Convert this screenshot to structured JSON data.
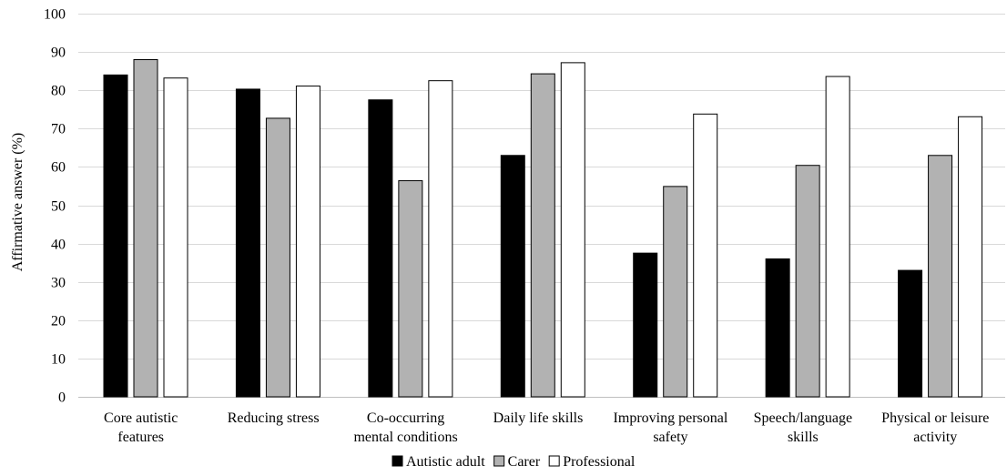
{
  "chart_data": {
    "type": "bar",
    "title": "",
    "ylabel": "Affirmative answer (%)",
    "xlabel": "",
    "ylim": [
      0,
      100
    ],
    "yticks": [
      0,
      10,
      20,
      30,
      40,
      50,
      60,
      70,
      80,
      90,
      100
    ],
    "grid": true,
    "legend_position": "bottom",
    "categories": [
      [
        "Core autistic",
        "features"
      ],
      [
        "Reducing stress"
      ],
      [
        "Co-occurring",
        "mental conditions"
      ],
      [
        "Daily life skills"
      ],
      [
        "Improving personal",
        "safety"
      ],
      [
        "Speech/language",
        "skills"
      ],
      [
        "Physical or leisure",
        "activity"
      ]
    ],
    "series": [
      {
        "name": "Autistic adult",
        "color": "#000000",
        "values": [
          84,
          80.3,
          77.5,
          63,
          37.5,
          36,
          33
        ]
      },
      {
        "name": "Carer",
        "color": "#b2b2b2",
        "values": [
          88,
          72.7,
          56.4,
          84.3,
          54.9,
          60.4,
          63
        ]
      },
      {
        "name": "Professional",
        "color": "#ffffff",
        "values": [
          83.2,
          81.1,
          82.5,
          87.2,
          73.8,
          83.6,
          73.1
        ]
      }
    ]
  }
}
